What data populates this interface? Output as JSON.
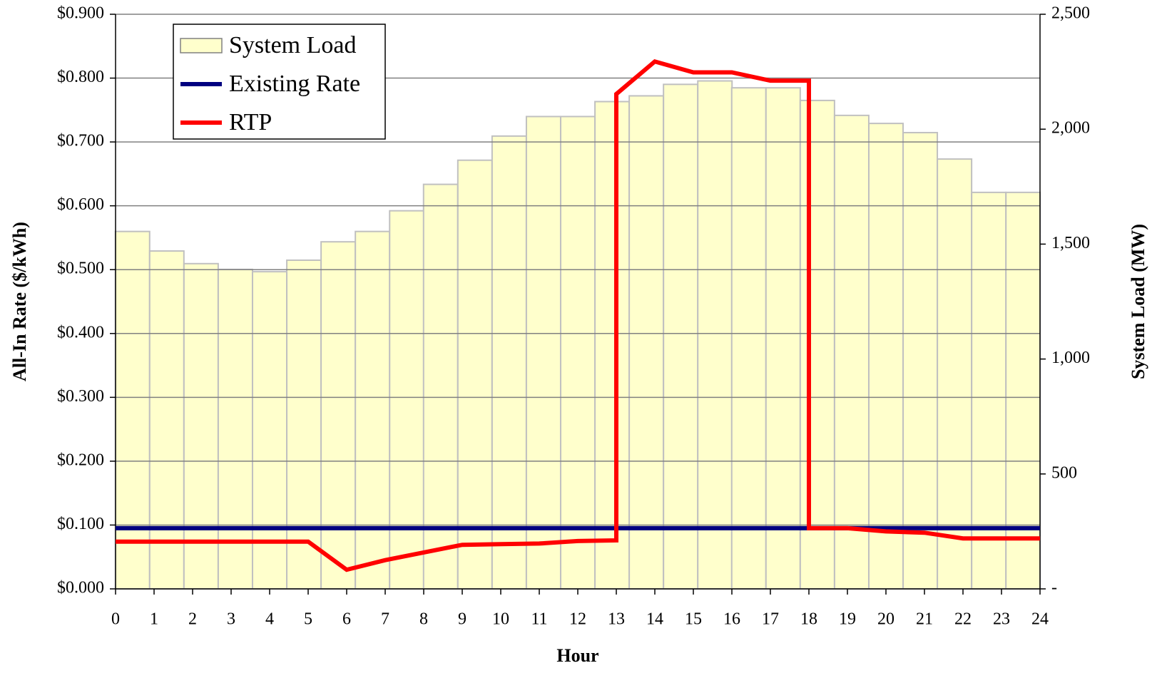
{
  "chart_data": {
    "type": "combo",
    "xlabel": "Hour",
    "ylabel": "All-In Rate ($/kWh)",
    "y2label": "System Load (MW)",
    "xlim": [
      0,
      24
    ],
    "xticks": [
      0,
      1,
      2,
      3,
      4,
      5,
      6,
      7,
      8,
      9,
      10,
      11,
      12,
      13,
      14,
      15,
      16,
      17,
      18,
      19,
      20,
      21,
      22,
      23,
      24
    ],
    "ylim": [
      0,
      0.9
    ],
    "yticks": [
      {
        "value": 0,
        "label": "$0.000"
      },
      {
        "value": 0.1,
        "label": "$0.100"
      },
      {
        "value": 0.2,
        "label": "$0.200"
      },
      {
        "value": 0.3,
        "label": "$0.300"
      },
      {
        "value": 0.4,
        "label": "$0.400"
      },
      {
        "value": 0.5,
        "label": "$0.500"
      },
      {
        "value": 0.6,
        "label": "$0.600"
      },
      {
        "value": 0.7,
        "label": "$0.700"
      },
      {
        "value": 0.8,
        "label": "$0.800"
      },
      {
        "value": 0.9,
        "label": "$0.900"
      }
    ],
    "y2lim": [
      0,
      2500
    ],
    "y2ticks": [
      {
        "value": 0,
        "label": "-"
      },
      500,
      {
        "value": 1000,
        "label": "1,000"
      },
      {
        "value": 1500,
        "label": "1,500"
      },
      {
        "value": 2000,
        "label": "2,000"
      },
      {
        "value": 2500,
        "label": "2,500"
      }
    ],
    "grid": true,
    "legend": "upper left",
    "series": [
      {
        "name": "System Load",
        "type": "bar",
        "axis": "y2",
        "color": "#ffffcc",
        "x": [
          0.44,
          1.33,
          2.22,
          3.11,
          4,
          4.89,
          5.78,
          6.67,
          7.56,
          8.44,
          9.33,
          10.22,
          11.11,
          12,
          12.89,
          13.78,
          14.67,
          15.56,
          16.44,
          17.33,
          18.22,
          19.11,
          20,
          20.89,
          21.78,
          22.67,
          23.56
        ],
        "values": [
          1555,
          1470,
          1415,
          1390,
          1380,
          1430,
          1510,
          1555,
          1645,
          1760,
          1865,
          1970,
          2055,
          2055,
          2120,
          2145,
          2195,
          2210,
          2180,
          2180,
          2125,
          2060,
          2025,
          1985,
          1870,
          1725,
          1725
        ]
      },
      {
        "name": "Existing Rate",
        "type": "line",
        "color": "#000080",
        "x": [
          0,
          24
        ],
        "values": [
          0.095,
          0.095
        ]
      },
      {
        "name": "RTP",
        "type": "line",
        "color": "#ff0000",
        "x": [
          0,
          1,
          2,
          3,
          4,
          5,
          6,
          7,
          8,
          9,
          10,
          11,
          12,
          13,
          13,
          14,
          15,
          16,
          17,
          18,
          18,
          19,
          20,
          21,
          22,
          23,
          24
        ],
        "values": [
          0.074,
          0.074,
          0.074,
          0.074,
          0.074,
          0.074,
          0.03,
          0.045,
          0.057,
          0.069,
          0.07,
          0.071,
          0.075,
          0.076,
          0.775,
          0.826,
          0.809,
          0.809,
          0.796,
          0.796,
          0.095,
          0.095,
          0.09,
          0.088,
          0.079,
          0.079,
          0.079
        ]
      }
    ]
  }
}
